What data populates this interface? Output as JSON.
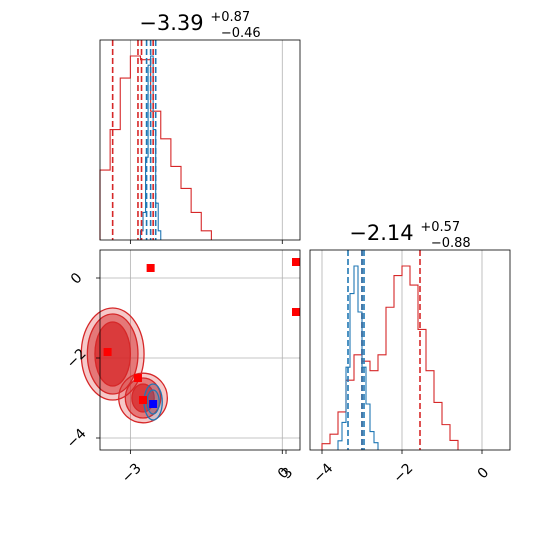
{
  "chart_data": [
    {
      "type": "histogram",
      "panel": "top-left",
      "title": {
        "value": "−3.39",
        "plus": "+0.87",
        "minus": "−0.46"
      },
      "xlim": [
        -3.6,
        0.35
      ],
      "x_ticks": [
        -3,
        0,
        3
      ],
      "x_ticklabels_shown": false,
      "grid": true,
      "series": [
        {
          "color": "#d62728",
          "bin_edges": [
            -4.4,
            -4.2,
            -4.0,
            -3.8,
            -3.6,
            -3.4,
            -3.2,
            -3.0,
            -2.8,
            -2.6,
            -2.4,
            -2.2,
            -2.0,
            -1.8,
            -1.6,
            -1.4
          ],
          "counts": [
            0.02,
            0.04,
            0.1,
            0.25,
            0.38,
            0.6,
            0.88,
            1.0,
            0.98,
            0.7,
            0.55,
            0.4,
            0.28,
            0.15,
            0.05
          ],
          "quantile_lines": [
            -3.35,
            -2.85,
            -2.78,
            -2.55
          ]
        },
        {
          "color": "#1f77b4",
          "bin_edges": [
            -2.8,
            -2.75,
            -2.7,
            -2.65,
            -2.6,
            -2.55,
            -2.5,
            -2.45,
            -2.4
          ],
          "counts": [
            0.05,
            0.15,
            0.45,
            0.95,
            1.0,
            0.6,
            0.2,
            0.05
          ],
          "quantile_lines": [
            -2.68,
            -2.6,
            -2.5
          ]
        }
      ]
    },
    {
      "type": "scatter-contour",
      "panel": "bottom-left",
      "xlim": [
        -3.6,
        0.35
      ],
      "ylim": [
        -4.3,
        0.7
      ],
      "x_ticks": [
        -3,
        0,
        3
      ],
      "y_ticks": [
        -4,
        -2,
        0
      ],
      "grid": true,
      "markers": [
        {
          "x": -2.6,
          "y": 0.25,
          "color": "#ff0000"
        },
        {
          "x": 3.2,
          "y": 0.4,
          "color": "#ff0000"
        },
        {
          "x": 3.0,
          "y": -0.85,
          "color": "#ff0000"
        },
        {
          "x": -3.45,
          "y": -1.85,
          "color": "#ff0000"
        },
        {
          "x": -2.85,
          "y": -2.5,
          "color": "#ff0000"
        },
        {
          "x": -2.75,
          "y": -3.05,
          "color": "#ff0000"
        },
        {
          "x": -2.55,
          "y": -3.15,
          "color": "#0000ff"
        }
      ],
      "contours": [
        {
          "color": "#d62728",
          "center": [
            -3.35,
            -1.9
          ],
          "radii": [
            [
              0.35,
              0.8
            ],
            [
              0.5,
              1.0
            ],
            [
              0.62,
              1.15
            ]
          ]
        },
        {
          "color": "#d62728",
          "center": [
            -2.75,
            -3.0
          ],
          "radii": [
            [
              0.22,
              0.35
            ],
            [
              0.35,
              0.5
            ],
            [
              0.48,
              0.62
            ]
          ]
        },
        {
          "color": "#1f77b4",
          "center": [
            -2.55,
            -3.1
          ],
          "radii": [
            [
              0.12,
              0.3
            ],
            [
              0.18,
              0.45
            ]
          ]
        }
      ]
    },
    {
      "type": "histogram",
      "panel": "bottom-right",
      "title": {
        "value": "−2.14",
        "plus": "+0.57",
        "minus": "−0.88"
      },
      "xlim": [
        -4.3,
        0.7
      ],
      "x_ticks": [
        -4,
        -2,
        0
      ],
      "grid": true,
      "series": [
        {
          "color": "#d62728",
          "bin_edges": [
            -4.0,
            -3.8,
            -3.6,
            -3.4,
            -3.2,
            -3.0,
            -2.8,
            -2.6,
            -2.4,
            -2.2,
            -2.0,
            -1.8,
            -1.6,
            -1.4,
            -1.2,
            -1.0,
            -0.8,
            -0.6
          ],
          "counts": [
            0.02,
            0.05,
            0.12,
            0.22,
            0.3,
            0.28,
            0.25,
            0.3,
            0.45,
            0.55,
            0.58,
            0.52,
            0.38,
            0.25,
            0.15,
            0.08,
            0.03
          ],
          "quantile_lines": [
            -3.0,
            -1.55
          ]
        },
        {
          "color": "#1f77b4",
          "bin_edges": [
            -3.6,
            -3.5,
            -3.4,
            -3.3,
            -3.2,
            -3.1,
            -3.0,
            -2.9,
            -2.8,
            -2.7,
            -2.6
          ],
          "counts": [
            0.05,
            0.15,
            0.45,
            0.85,
            1.0,
            0.75,
            0.45,
            0.25,
            0.1,
            0.04
          ],
          "quantile_lines": [
            -3.35,
            -3.0,
            -2.95
          ]
        }
      ]
    }
  ]
}
